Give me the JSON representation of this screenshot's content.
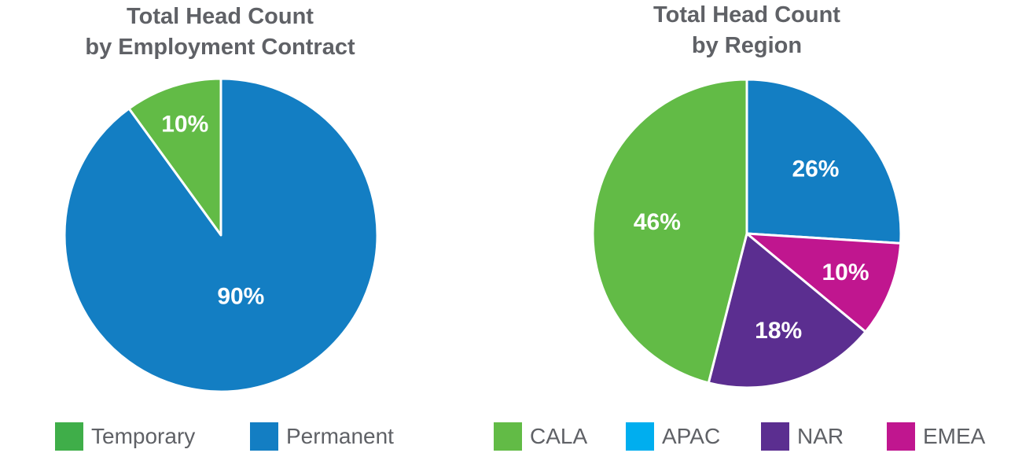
{
  "chart_data": [
    {
      "type": "pie",
      "title": [
        "Total Head Count",
        "by Employment Contract"
      ],
      "slices": [
        {
          "name": "Temporary",
          "value": 10,
          "label": "10%",
          "color": "#62bb46"
        },
        {
          "name": "Permanent",
          "value": 90,
          "label": "90%",
          "color": "#137ec3"
        }
      ],
      "start": "12 o'clock",
      "direction": "counterclockwise",
      "legend": [
        {
          "name": "Temporary",
          "color": "#3fae49"
        },
        {
          "name": "Permanent",
          "color": "#137ec3"
        }
      ],
      "legend_position": "bottom"
    },
    {
      "type": "pie",
      "title": [
        "Total Head Count",
        "by Region"
      ],
      "slices": [
        {
          "name": "APAC",
          "value": 26,
          "label": "26%",
          "color": "#137ec3"
        },
        {
          "name": "EMEA",
          "value": 10,
          "label": "10%",
          "color": "#c0168f"
        },
        {
          "name": "NAR",
          "value": 18,
          "label": "18%",
          "color": "#5b2e90"
        },
        {
          "name": "CALA",
          "value": 46,
          "label": "46%",
          "color": "#62bb46"
        }
      ],
      "start": "12 o'clock",
      "direction": "clockwise",
      "legend": [
        {
          "name": "CALA",
          "color": "#62bb46"
        },
        {
          "name": "APAC",
          "color": "#00aeef"
        },
        {
          "name": "NAR",
          "color": "#5b2e90"
        },
        {
          "name": "EMEA",
          "color": "#c0168f"
        }
      ],
      "legend_position": "bottom"
    }
  ]
}
